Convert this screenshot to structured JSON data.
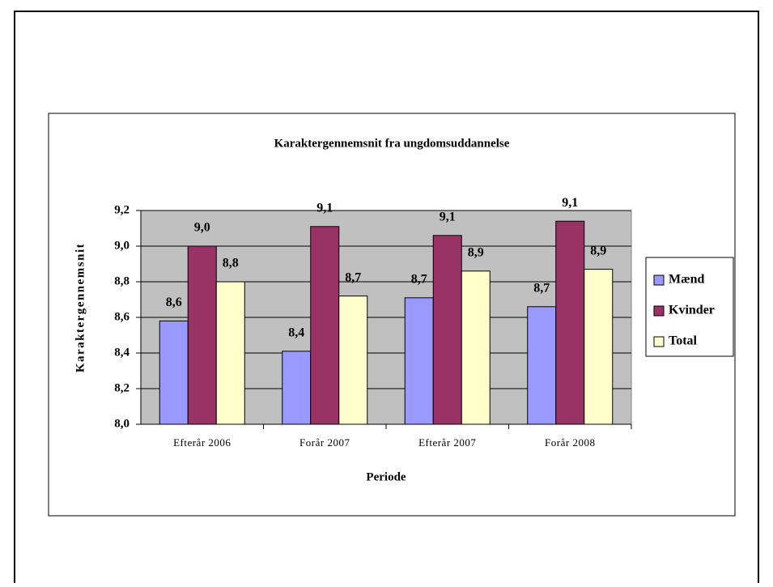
{
  "chart_data": {
    "type": "bar",
    "title": "Karaktergennemsnit fra ungdomsuddannelse",
    "x_label": "Periode",
    "y_label": "Karaktergennemsnit",
    "categories": [
      "Efterår 2006",
      "Forår 2007",
      "Efterår 2007",
      "Forår 2008"
    ],
    "series": [
      {
        "name": "Mænd",
        "color": "#9999ff",
        "values": [
          8.58,
          8.41,
          8.71,
          8.66
        ],
        "value_labels": [
          "8,6",
          "8,4",
          "8,7",
          "8,7"
        ]
      },
      {
        "name": "Kvinder",
        "color": "#993366",
        "values": [
          9.0,
          9.11,
          9.06,
          9.14
        ],
        "value_labels": [
          "9,0",
          "9,1",
          "9,1",
          "9,1"
        ]
      },
      {
        "name": "Total",
        "color": "#ffffcc",
        "values": [
          8.8,
          8.72,
          8.86,
          8.87
        ],
        "value_labels": [
          "8,8",
          "8,7",
          "8,9",
          "8,9"
        ]
      }
    ],
    "ylim": [
      8.0,
      9.2
    ],
    "yticks": [
      {
        "value": 8.0,
        "label": "8,0"
      },
      {
        "value": 8.2,
        "label": "8,2"
      },
      {
        "value": 8.4,
        "label": "8,4"
      },
      {
        "value": 8.6,
        "label": "8,6"
      },
      {
        "value": 8.8,
        "label": "8,8"
      },
      {
        "value": 9.0,
        "label": "9,0"
      },
      {
        "value": 9.2,
        "label": "9,2"
      }
    ],
    "grid": true,
    "legend": "right",
    "plot_background": "#c0c0c0"
  }
}
